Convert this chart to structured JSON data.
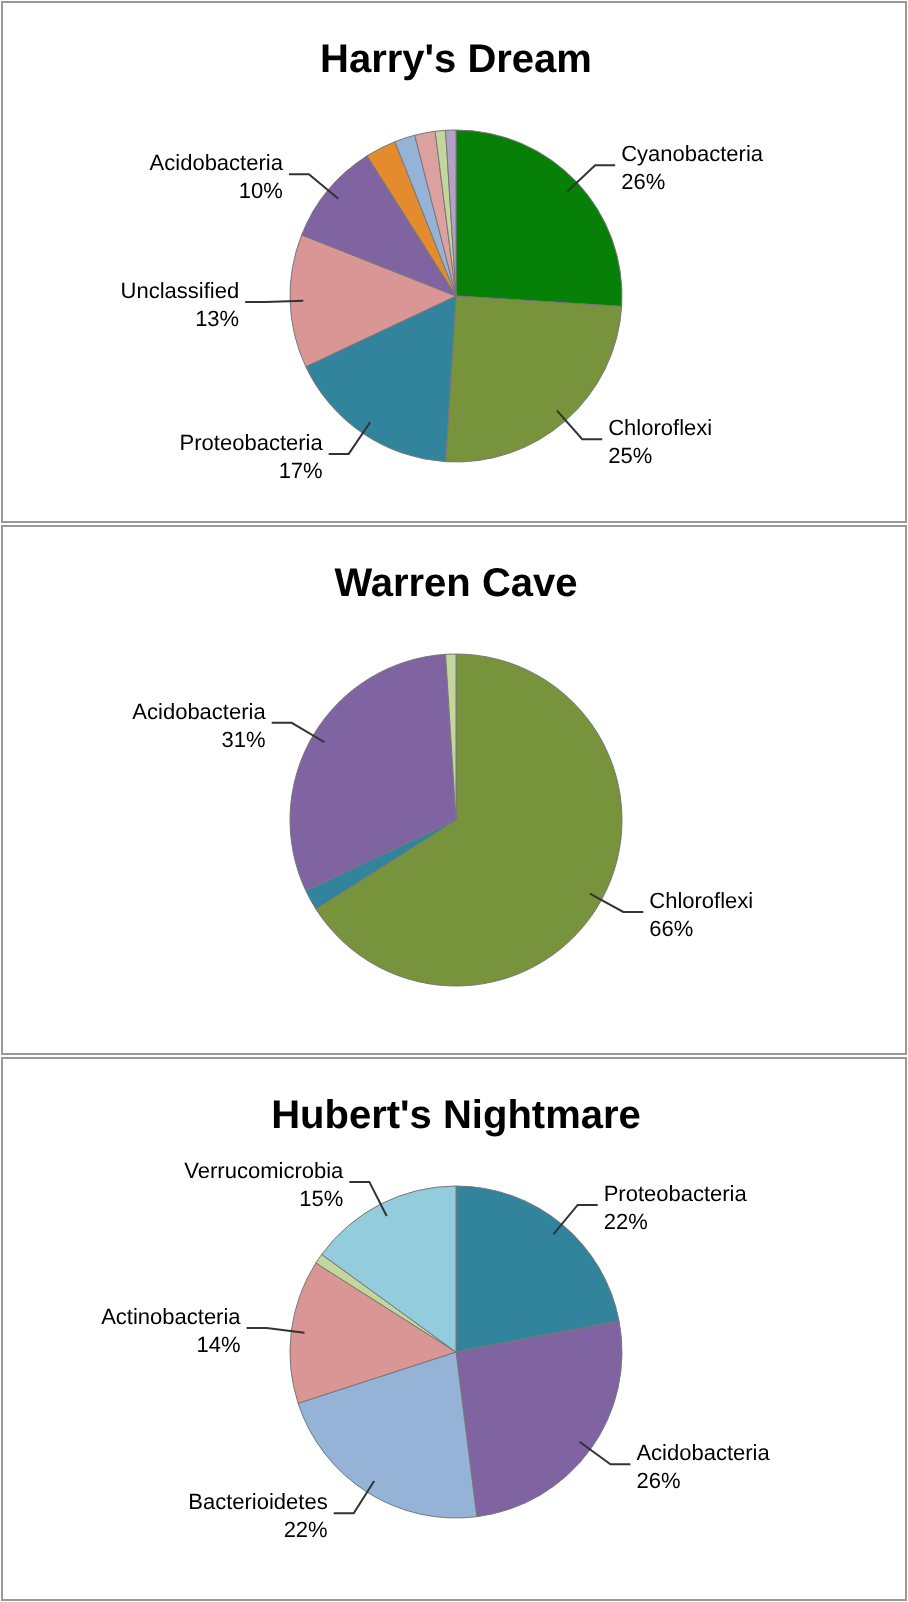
{
  "chart_data": [
    {
      "type": "pie",
      "title": "Harry's Dream",
      "categories": [
        "Cyanobacteria",
        "Chloroflexi",
        "Proteobacteria",
        "Unclassified",
        "Acidobacteria",
        null,
        null,
        null,
        null,
        null
      ],
      "values": [
        26,
        25,
        17,
        13,
        10,
        3,
        2,
        2,
        1,
        1
      ],
      "value_labels": [
        "26%",
        "25%",
        "17%",
        "13%",
        "10%",
        null,
        null,
        null,
        null,
        null
      ],
      "colors": [
        "#078007",
        "#77933c",
        "#31849b",
        "#d99694",
        "#8064a2",
        "#e48b2e",
        "#95b3d7",
        "#dca0a0",
        "#c3d69b",
        "#b3a2c7"
      ]
    },
    {
      "type": "pie",
      "title": "Warren Cave",
      "categories": [
        "Chloroflexi",
        null,
        "Acidobacteria",
        null
      ],
      "values": [
        66,
        2,
        31,
        1
      ],
      "value_labels": [
        "66%",
        null,
        "31%",
        null
      ],
      "colors": [
        "#77933c",
        "#31849b",
        "#8064a2",
        "#c3d69b"
      ]
    },
    {
      "type": "pie",
      "title": "Hubert's Nightmare",
      "categories": [
        "Proteobacteria",
        "Acidobacteria",
        "Bacterioidetes",
        "Actinobacteria",
        null,
        "Verrucomicrobia"
      ],
      "values": [
        22,
        26,
        22,
        14,
        1,
        15
      ],
      "value_labels": [
        "22%",
        "26%",
        "22%",
        "14%",
        null,
        "15%"
      ],
      "colors": [
        "#31849b",
        "#8064a2",
        "#95b3d7",
        "#d99694",
        "#c3d69b",
        "#93cddd"
      ]
    }
  ]
}
